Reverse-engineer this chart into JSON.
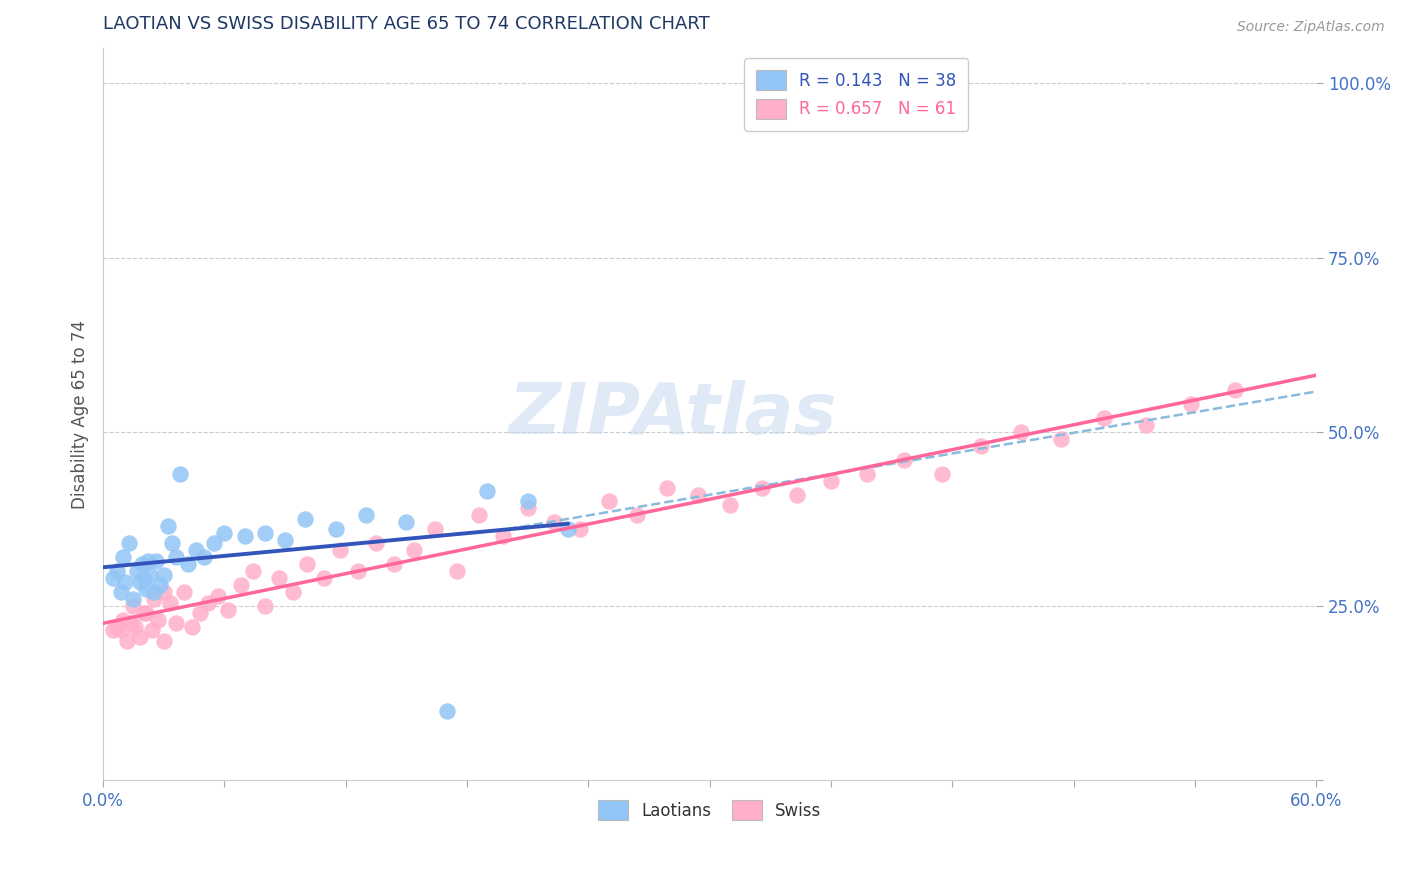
{
  "title": "LAOTIAN VS SWISS DISABILITY AGE 65 TO 74 CORRELATION CHART",
  "source": "Source: ZipAtlas.com",
  "ylabel": "Disability Age 65 to 74",
  "xlim": [
    0.0,
    0.6
  ],
  "ylim": [
    0.0,
    1.05
  ],
  "xtick_vals": [
    0.0,
    0.06,
    0.12,
    0.18,
    0.24,
    0.3,
    0.36,
    0.42,
    0.48,
    0.54,
    0.6
  ],
  "ytick_vals": [
    0.0,
    0.25,
    0.5,
    0.75,
    1.0
  ],
  "yticklabels": [
    "",
    "25.0%",
    "50.0%",
    "75.0%",
    "100.0%"
  ],
  "laotian_color": "#92C5F5",
  "swiss_color": "#FFB0C8",
  "laotian_line_color": "#3355BB",
  "swiss_line_color": "#FF6699",
  "dashed_line_color": "#88BBDD",
  "R_laotian": 0.143,
  "N_laotian": 38,
  "R_swiss": 0.657,
  "N_swiss": 61,
  "legend_label_laotian": "Laotians",
  "legend_label_swiss": "Swiss",
  "title_color": "#1F3864",
  "axis_label_color": "#4472C4",
  "laotian_x": [
    0.005,
    0.007,
    0.009,
    0.01,
    0.011,
    0.013,
    0.015,
    0.017,
    0.018,
    0.019,
    0.02,
    0.021,
    0.022,
    0.023,
    0.025,
    0.026,
    0.028,
    0.03,
    0.032,
    0.034,
    0.036,
    0.038,
    0.042,
    0.046,
    0.05,
    0.055,
    0.06,
    0.07,
    0.08,
    0.09,
    0.1,
    0.115,
    0.13,
    0.15,
    0.17,
    0.19,
    0.21,
    0.23
  ],
  "laotian_y": [
    0.29,
    0.3,
    0.27,
    0.32,
    0.285,
    0.34,
    0.26,
    0.3,
    0.285,
    0.31,
    0.29,
    0.275,
    0.315,
    0.295,
    0.27,
    0.315,
    0.28,
    0.295,
    0.365,
    0.34,
    0.32,
    0.44,
    0.31,
    0.33,
    0.32,
    0.34,
    0.355,
    0.35,
    0.355,
    0.345,
    0.375,
    0.36,
    0.38,
    0.37,
    0.1,
    0.415,
    0.4,
    0.36
  ],
  "swiss_x": [
    0.005,
    0.007,
    0.009,
    0.012,
    0.014,
    0.016,
    0.018,
    0.021,
    0.024,
    0.027,
    0.03,
    0.033,
    0.036,
    0.04,
    0.044,
    0.048,
    0.052,
    0.057,
    0.062,
    0.068,
    0.074,
    0.08,
    0.087,
    0.094,
    0.101,
    0.109,
    0.117,
    0.126,
    0.135,
    0.144,
    0.154,
    0.164,
    0.175,
    0.186,
    0.198,
    0.21,
    0.223,
    0.236,
    0.25,
    0.264,
    0.279,
    0.294,
    0.31,
    0.326,
    0.343,
    0.36,
    0.378,
    0.396,
    0.415,
    0.434,
    0.454,
    0.474,
    0.495,
    0.516,
    0.538,
    0.56,
    0.01,
    0.015,
    0.02,
    0.025,
    0.03
  ],
  "swiss_y": [
    0.215,
    0.22,
    0.215,
    0.2,
    0.225,
    0.22,
    0.205,
    0.24,
    0.215,
    0.23,
    0.2,
    0.255,
    0.225,
    0.27,
    0.22,
    0.24,
    0.255,
    0.265,
    0.245,
    0.28,
    0.3,
    0.25,
    0.29,
    0.27,
    0.31,
    0.29,
    0.33,
    0.3,
    0.34,
    0.31,
    0.33,
    0.36,
    0.3,
    0.38,
    0.35,
    0.39,
    0.37,
    0.36,
    0.4,
    0.38,
    0.42,
    0.41,
    0.395,
    0.42,
    0.41,
    0.43,
    0.44,
    0.46,
    0.44,
    0.48,
    0.5,
    0.49,
    0.52,
    0.51,
    0.54,
    0.56,
    0.23,
    0.25,
    0.24,
    0.26,
    0.27
  ]
}
